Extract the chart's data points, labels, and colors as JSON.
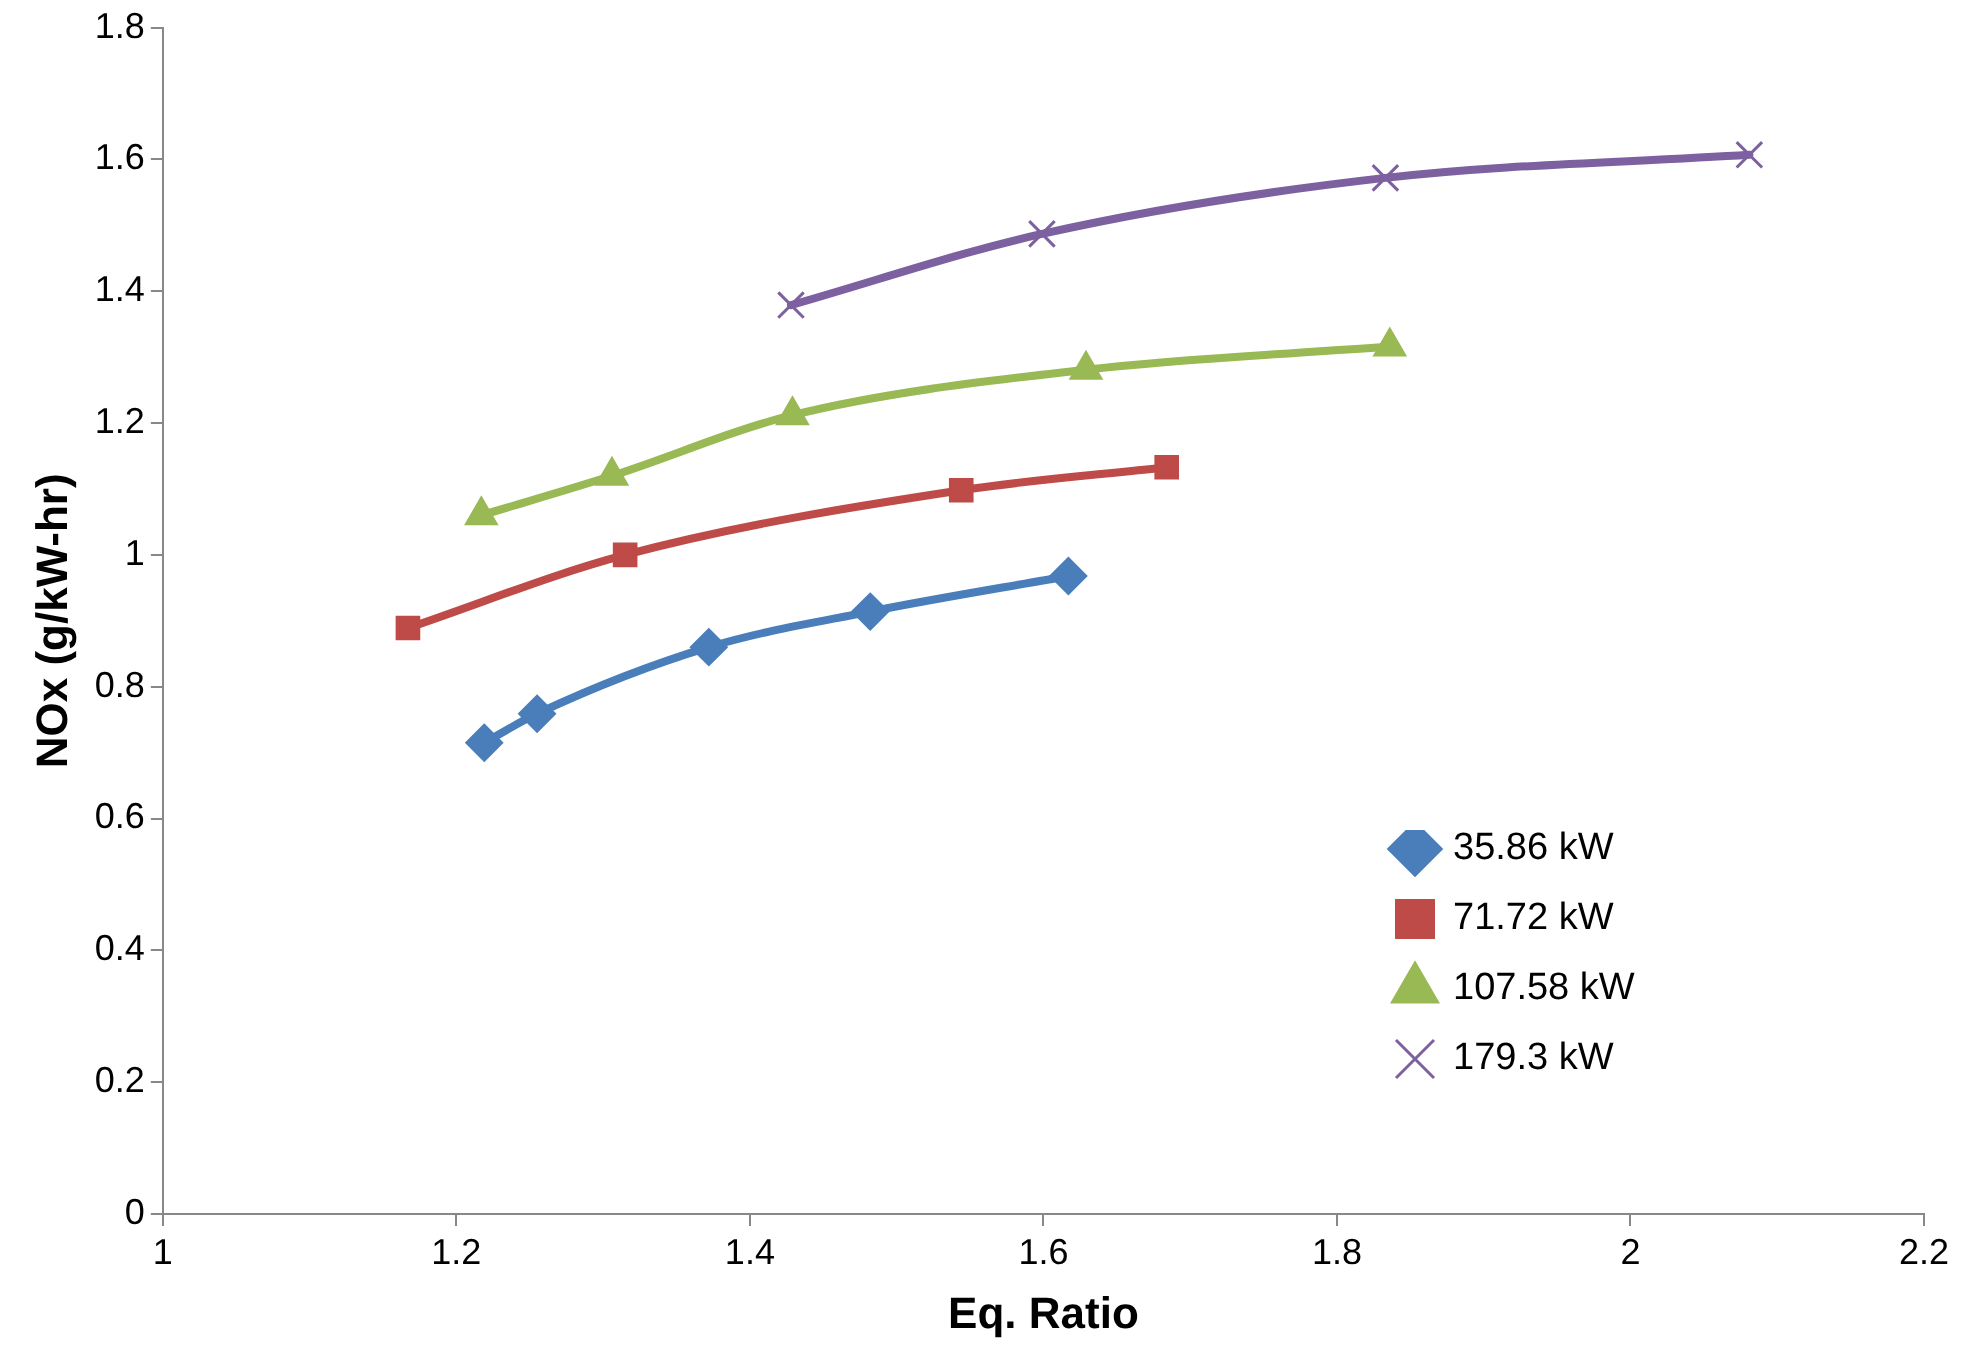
{
  "chart_data": {
    "type": "line",
    "xlabel": "Eq. Ratio",
    "ylabel": "NOx (g/kW-hr)",
    "xlim": [
      1,
      2.2
    ],
    "xticks": [
      1,
      1.2,
      1.4,
      1.6,
      1.8,
      2,
      2.2
    ],
    "ylim": [
      0,
      1.8
    ],
    "yticks": [
      0,
      0.2,
      0.4,
      0.6,
      0.8,
      1,
      1.2,
      1.4,
      1.6,
      1.8
    ],
    "grid": false,
    "legend": "bottom right",
    "series": [
      {
        "name": "35.86 kW",
        "color": "#4a7ebb",
        "marker": "diamond",
        "x": [
          1.219,
          1.255,
          1.372,
          1.482,
          1.617
        ],
        "values": [
          0.715,
          0.759,
          0.86,
          0.914,
          0.968
        ]
      },
      {
        "name": "71.72 kW",
        "color": "#be4b48",
        "marker": "square",
        "x": [
          1.167,
          1.315,
          1.544,
          1.684
        ],
        "values": [
          0.889,
          1.0,
          1.098,
          1.133
        ]
      },
      {
        "name": "107.58 kW",
        "color": "#98b954",
        "marker": "triangle",
        "x": [
          1.217,
          1.306,
          1.429,
          1.629,
          1.836
        ],
        "values": [
          1.06,
          1.12,
          1.212,
          1.281,
          1.316
        ]
      },
      {
        "name": "179.3 kW",
        "color": "#7d60a0",
        "marker": "cross",
        "x": [
          1.428,
          1.599,
          1.833,
          2.081
        ],
        "values": [
          1.379,
          1.487,
          1.572,
          1.607
        ]
      }
    ]
  }
}
